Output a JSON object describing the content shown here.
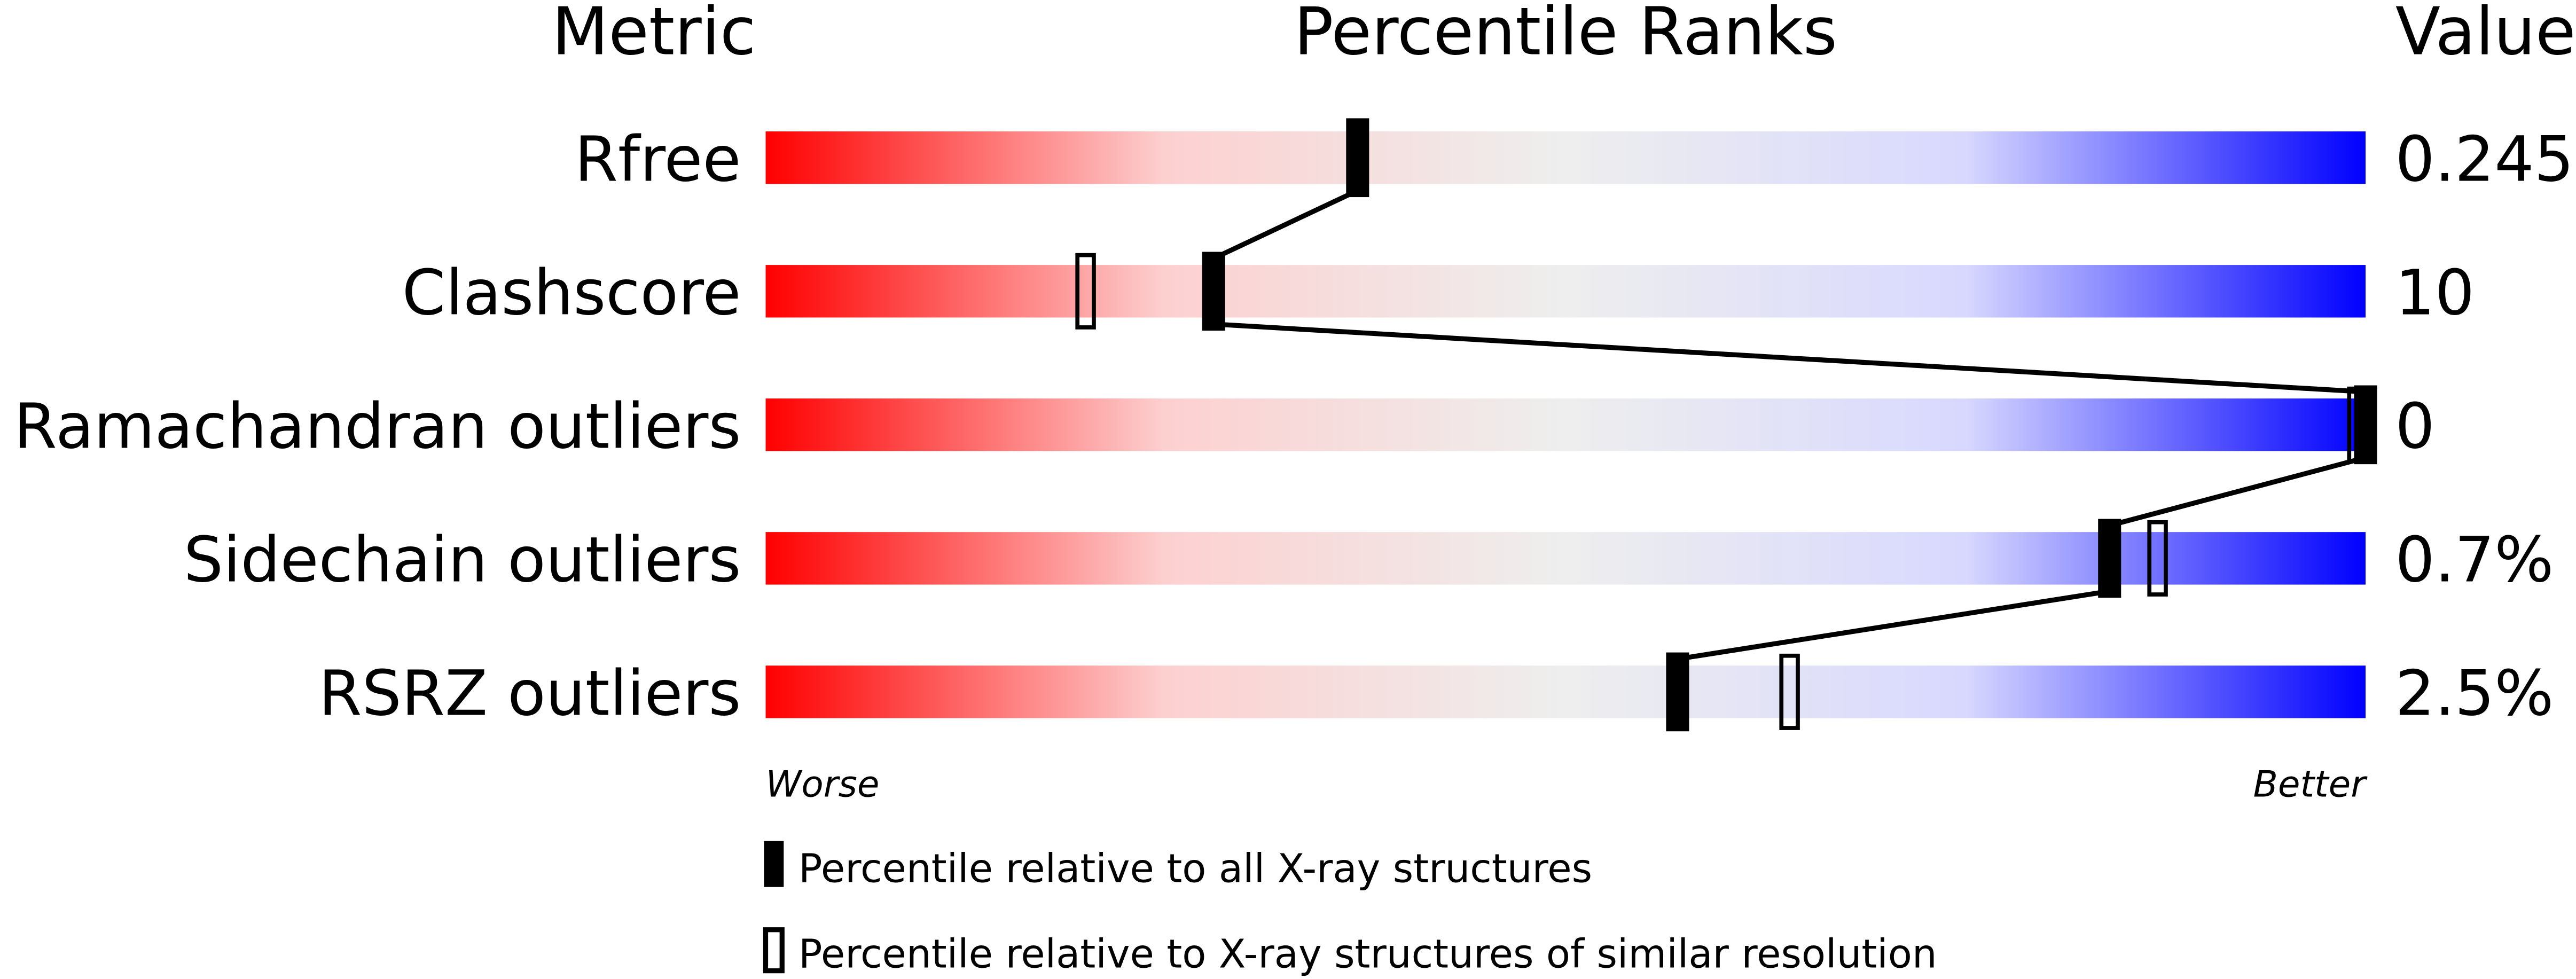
{
  "chart_data": {
    "type": "percentile-slider",
    "headers": {
      "metric": "Metric",
      "ranks": "Percentile Ranks",
      "value": "Value"
    },
    "xlim": [
      0,
      100
    ],
    "gradient_colors": [
      "#ff0000",
      "#fdd0d0",
      "#eeeeee",
      "#d8d8ff",
      "#0000ff"
    ],
    "metrics": [
      {
        "name": "Rfree",
        "value": "0.245",
        "percentile_all": 37,
        "percentile_similar": 37
      },
      {
        "name": "Clashscore",
        "value": "10",
        "percentile_all": 28,
        "percentile_similar": 20
      },
      {
        "name": "Ramachandran outliers",
        "value": "0",
        "percentile_all": 100,
        "percentile_similar": 100
      },
      {
        "name": "Sidechain outliers",
        "value": "0.7%",
        "percentile_all": 84,
        "percentile_similar": 87
      },
      {
        "name": "RSRZ outliers",
        "value": "2.5%",
        "percentile_all": 57,
        "percentile_similar": 64
      }
    ],
    "axis_left_label": "Worse",
    "axis_right_label": "Better",
    "legend": {
      "all": "Percentile relative to all X-ray structures",
      "similar": "Percentile relative to X-ray structures of similar resolution"
    }
  }
}
